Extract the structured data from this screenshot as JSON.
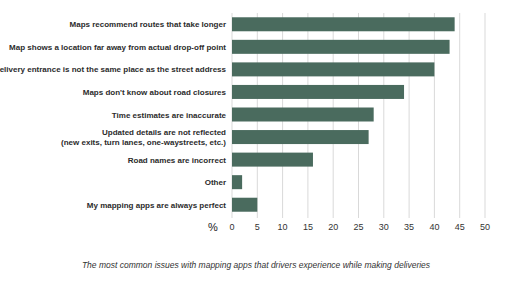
{
  "chart_data": {
    "type": "bar",
    "orientation": "horizontal",
    "title": "The most common issues with mapping apps that drivers experience while making deliveries",
    "x_label": "%",
    "categories": [
      "Maps recommend routes that take longer",
      "Map shows a location far away from actual drop-off point",
      "Delivery entrance is not the same place as the street address",
      "Maps don't know about road closures",
      "Time estimates are inaccurate",
      "Updated details are not reflected\n(new exits, turn lanes, one-waystreets, etc.)",
      "Road names are incorrect",
      "Other",
      "My mapping apps are always perfect"
    ],
    "values": [
      44,
      43,
      40,
      34,
      28,
      27,
      16,
      2,
      5
    ],
    "color": "#4a6b5e",
    "xlim": [
      0,
      50
    ],
    "xticks": [
      0,
      5,
      10,
      15,
      20,
      25,
      30,
      35,
      40,
      45,
      50
    ],
    "grid": true
  }
}
